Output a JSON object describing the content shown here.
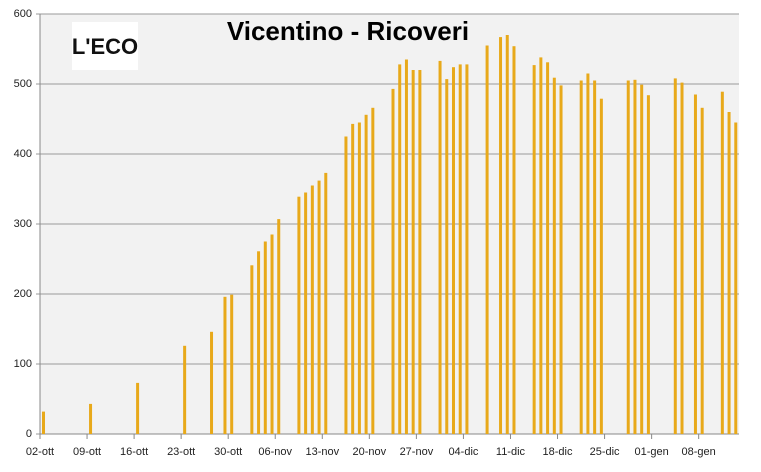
{
  "logo": "L'ECO",
  "chart_data": {
    "type": "bar",
    "title": "Vicentino - Ricoveri",
    "categories": [
      "02-ott",
      null,
      null,
      null,
      null,
      null,
      null,
      "09-ott",
      null,
      null,
      null,
      null,
      null,
      null,
      "16-ott",
      null,
      null,
      null,
      null,
      null,
      null,
      "23-ott",
      null,
      null,
      null,
      null,
      null,
      null,
      "30-ott",
      null,
      null,
      null,
      null,
      null,
      null,
      "06-nov",
      null,
      null,
      null,
      null,
      null,
      null,
      "13-nov",
      null,
      null,
      null,
      null,
      null,
      null,
      "20-nov",
      null,
      null,
      null,
      null,
      null,
      null,
      "27-nov",
      null,
      null,
      null,
      null,
      null,
      null,
      "04-dic",
      null,
      null,
      null,
      null,
      null,
      null,
      "11-dic",
      null,
      null,
      null,
      null,
      null,
      null,
      "18-dic",
      null,
      null,
      null,
      null,
      null,
      null,
      "25-dic",
      null,
      null,
      null,
      null,
      null,
      null,
      "01-gen",
      null,
      null,
      null,
      null,
      null,
      null,
      "08-gen",
      null,
      null,
      null,
      null,
      null
    ],
    "values": [
      32,
      null,
      null,
      null,
      null,
      null,
      null,
      43,
      null,
      null,
      null,
      null,
      null,
      null,
      73,
      null,
      null,
      null,
      null,
      null,
      null,
      126,
      null,
      null,
      null,
      146,
      null,
      196,
      199,
      null,
      null,
      241,
      261,
      275,
      285,
      307,
      null,
      null,
      339,
      345,
      355,
      362,
      373,
      null,
      null,
      425,
      443,
      445,
      456,
      466,
      null,
      null,
      493,
      528,
      535,
      520,
      520,
      null,
      null,
      533,
      507,
      524,
      528,
      528,
      null,
      null,
      555,
      null,
      567,
      570,
      554,
      null,
      null,
      527,
      538,
      531,
      509,
      498,
      null,
      null,
      505,
      515,
      505,
      479,
      null,
      null,
      null,
      505,
      506,
      499,
      484,
      null,
      null,
      null,
      508,
      502,
      null,
      485,
      466,
      null,
      null,
      489,
      460,
      445
    ],
    "color": "#e8a91a",
    "ylim": [
      0,
      600
    ],
    "yticks": [
      0,
      100,
      200,
      300,
      400,
      500,
      600
    ],
    "grid": true
  }
}
